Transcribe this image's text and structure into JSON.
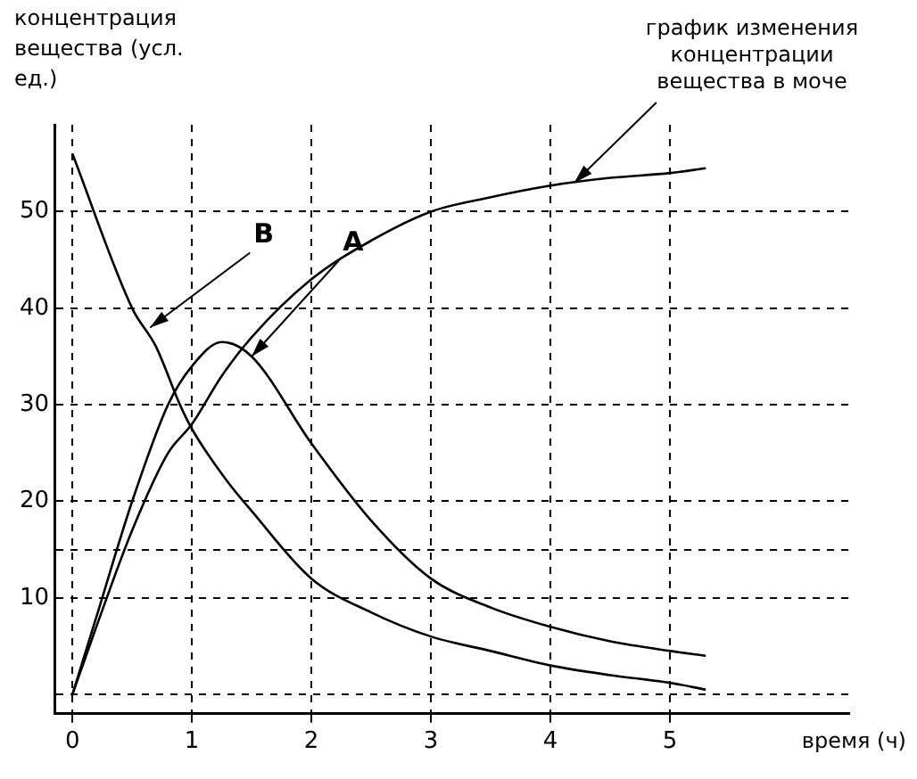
{
  "chart_data": {
    "type": "line",
    "xlabel": "время (ч)",
    "ylabel": "концентрация вещества (усл. ед.)",
    "xlim": [
      -0.15,
      6.5
    ],
    "xticks": [
      0,
      1,
      2,
      3,
      4,
      5
    ],
    "ylim": [
      -2,
      59
    ],
    "yticks": [
      {
        "value": 0,
        "label": null
      },
      10,
      {
        "value": 15,
        "label": null
      },
      20,
      30,
      40,
      50
    ],
    "grid": true,
    "legend": false,
    "line_style": "solid",
    "marker": "none",
    "series": [
      {
        "color": "#000000",
        "x": [
          0,
          0.5,
          0.7,
          0.9,
          1,
          1.3,
          1.5,
          2,
          2.5,
          3,
          3.5,
          4,
          4.5,
          5,
          5.3
        ],
        "values": [
          56,
          40,
          36,
          30,
          27.5,
          22,
          19,
          12,
          8.5,
          6,
          4.5,
          3,
          2,
          1.2,
          0.5
        ]
      },
      {
        "color": "#000000",
        "x": [
          0,
          0.2,
          0.5,
          0.8,
          1,
          1.25,
          1.5,
          2,
          2.5,
          3,
          3.5,
          4,
          4.5,
          5,
          5.3
        ],
        "values": [
          0,
          8,
          20,
          30,
          34,
          36.5,
          35,
          26,
          18,
          12,
          9,
          7,
          5.5,
          4.5,
          4
        ]
      },
      {
        "color": "#000000",
        "x": [
          0,
          0.2,
          0.5,
          0.8,
          1,
          1.25,
          1.5,
          2,
          2.5,
          3,
          3.5,
          4,
          4.5,
          5,
          5.3
        ],
        "values": [
          0,
          7,
          17,
          25,
          28,
          33,
          37,
          43,
          47,
          50,
          51.5,
          52.7,
          53.5,
          54,
          54.5
        ]
      }
    ],
    "annotations": [
      {
        "text": "В",
        "x": 0.65,
        "y": 38
      },
      {
        "text": "А",
        "x": 1.5,
        "y": 35
      },
      {
        "text": "график изменения концентрации вещества в моче",
        "x": 4.2,
        "y": 53
      }
    ]
  }
}
